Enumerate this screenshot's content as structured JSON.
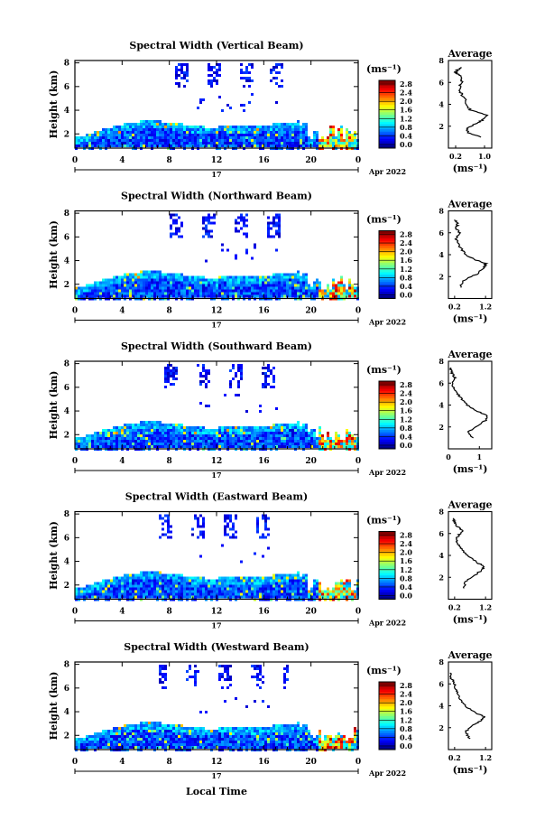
{
  "figure": {
    "xlabel": "Local Time",
    "day_label": "17",
    "date_label": "Apr 2022",
    "ylabel": "Height (km)",
    "colorbar_unit": "(ms⁻¹)",
    "avg_title": "Average",
    "avg_xlabel": "(ms⁻¹)"
  },
  "chart_data": [
    {
      "type": "heatmap",
      "title": "Spectral Width (Vertical Beam)",
      "xlabel": "Local Time",
      "ylabel": "Height (km)",
      "x_ticks": [
        "0",
        "4",
        "8",
        "12",
        "16",
        "20",
        "0"
      ],
      "y_ticks": [
        "2",
        "4",
        "6",
        "8"
      ],
      "xlim": [
        0,
        24
      ],
      "ylim": [
        0.8,
        8.2
      ],
      "colorbar": {
        "ticks": [
          "0.0",
          "0.4",
          "0.8",
          "1.2",
          "1.6",
          "2.0",
          "2.4",
          "2.8"
        ],
        "range": [
          0,
          2.8
        ]
      },
      "average": {
        "xticks": [
          "0.2",
          "1.0"
        ],
        "xlim": [
          0,
          1.2
        ],
        "ylim": [
          0,
          8
        ],
        "profile": [
          [
            0.9,
            1.0
          ],
          [
            0.55,
            1.4
          ],
          [
            0.5,
            1.8
          ],
          [
            0.75,
            2.2
          ],
          [
            0.95,
            2.6
          ],
          [
            1.05,
            3.0
          ],
          [
            0.6,
            3.5
          ],
          [
            0.5,
            4.0
          ],
          [
            0.45,
            4.5
          ],
          [
            0.35,
            5.0
          ],
          [
            0.3,
            5.5
          ],
          [
            0.35,
            6.0
          ],
          [
            0.4,
            6.4
          ],
          [
            0.25,
            6.8
          ],
          [
            0.2,
            7.0
          ],
          [
            0.35,
            7.4
          ]
        ]
      }
    },
    {
      "type": "heatmap",
      "title": "Spectral Width (Northward Beam)",
      "xlabel": "Local Time",
      "ylabel": "Height (km)",
      "x_ticks": [
        "0",
        "4",
        "8",
        "12",
        "16",
        "20",
        "0"
      ],
      "y_ticks": [
        "2",
        "4",
        "6",
        "8"
      ],
      "xlim": [
        0,
        24
      ],
      "ylim": [
        0.8,
        8.2
      ],
      "colorbar": {
        "ticks": [
          "0.0",
          "0.4",
          "0.8",
          "1.2",
          "1.6",
          "2.0",
          "2.4",
          "2.8"
        ],
        "range": [
          0,
          2.8
        ]
      },
      "average": {
        "xticks": [
          "0.2",
          "1.2"
        ],
        "xlim": [
          0,
          1.4
        ],
        "ylim": [
          0,
          8
        ],
        "profile": [
          [
            0.4,
            1.0
          ],
          [
            0.45,
            1.6
          ],
          [
            0.9,
            2.2
          ],
          [
            1.15,
            2.8
          ],
          [
            1.2,
            3.2
          ],
          [
            0.9,
            3.5
          ],
          [
            0.55,
            4.0
          ],
          [
            0.4,
            4.6
          ],
          [
            0.3,
            5.0
          ],
          [
            0.25,
            5.5
          ],
          [
            0.35,
            6.0
          ],
          [
            0.25,
            6.4
          ],
          [
            0.3,
            6.8
          ],
          [
            0.2,
            7.2
          ]
        ]
      }
    },
    {
      "type": "heatmap",
      "title": "Spectral Width (Southward Beam)",
      "xlabel": "Local Time",
      "ylabel": "Height (km)",
      "x_ticks": [
        "0",
        "4",
        "8",
        "12",
        "16",
        "20",
        "0"
      ],
      "y_ticks": [
        "2",
        "4",
        "6",
        "8"
      ],
      "xlim": [
        0,
        24
      ],
      "ylim": [
        0.8,
        8.2
      ],
      "colorbar": {
        "ticks": [
          "0.0",
          "0.4",
          "0.8",
          "1.2",
          "1.6",
          "2.0",
          "2.4",
          "2.8"
        ],
        "range": [
          0,
          2.8
        ]
      },
      "average": {
        "xticks": [
          "0",
          "1"
        ],
        "xlim": [
          0,
          1.4
        ],
        "ylim": [
          0,
          8
        ],
        "profile": [
          [
            0.8,
            1.0
          ],
          [
            0.6,
            1.5
          ],
          [
            0.9,
            2.0
          ],
          [
            1.2,
            2.6
          ],
          [
            1.25,
            3.0
          ],
          [
            0.9,
            3.5
          ],
          [
            0.6,
            4.0
          ],
          [
            0.45,
            4.5
          ],
          [
            0.3,
            5.0
          ],
          [
            0.2,
            5.5
          ],
          [
            0.1,
            6.0
          ],
          [
            0.2,
            6.5
          ],
          [
            0.1,
            7.0
          ],
          [
            0.05,
            7.4
          ]
        ]
      }
    },
    {
      "type": "heatmap",
      "title": "Spectral Width (Eastward Beam)",
      "xlabel": "Local Time",
      "ylabel": "Height (km)",
      "x_ticks": [
        "0",
        "4",
        "8",
        "12",
        "16",
        "20",
        "0"
      ],
      "y_ticks": [
        "2",
        "4",
        "6",
        "8"
      ],
      "xlim": [
        0,
        24
      ],
      "ylim": [
        0.8,
        8.2
      ],
      "colorbar": {
        "ticks": [
          "0.0",
          "0.4",
          "0.8",
          "1.2",
          "1.6",
          "2.0",
          "2.4",
          "2.8"
        ],
        "range": [
          0,
          2.8
        ]
      },
      "average": {
        "xticks": [
          "0.2",
          "1.2"
        ],
        "xlim": [
          0,
          1.4
        ],
        "ylim": [
          0,
          8
        ],
        "profile": [
          [
            0.5,
            1.0
          ],
          [
            0.55,
            1.6
          ],
          [
            0.85,
            2.2
          ],
          [
            1.1,
            2.7
          ],
          [
            1.15,
            3.0
          ],
          [
            0.9,
            3.4
          ],
          [
            0.6,
            4.0
          ],
          [
            0.45,
            4.6
          ],
          [
            0.3,
            5.0
          ],
          [
            0.25,
            5.5
          ],
          [
            0.35,
            5.9
          ],
          [
            0.45,
            6.3
          ],
          [
            0.3,
            6.6
          ],
          [
            0.2,
            7.0
          ],
          [
            0.15,
            7.4
          ]
        ]
      }
    },
    {
      "type": "heatmap",
      "title": "Spectral Width (Westward Beam)",
      "xlabel": "Local Time",
      "ylabel": "Height (km)",
      "x_ticks": [
        "0",
        "4",
        "8",
        "12",
        "16",
        "20",
        "0"
      ],
      "y_ticks": [
        "2",
        "4",
        "6",
        "8"
      ],
      "xlim": [
        0,
        24
      ],
      "ylim": [
        0.8,
        8.2
      ],
      "colorbar": {
        "ticks": [
          "0.0",
          "0.4",
          "0.8",
          "1.2",
          "1.6",
          "2.0",
          "2.4",
          "2.8"
        ],
        "range": [
          0,
          2.8
        ]
      },
      "average": {
        "xticks": [
          "0.2",
          "1.2"
        ],
        "xlim": [
          0,
          1.4
        ],
        "ylim": [
          0,
          8
        ],
        "profile": [
          [
            0.7,
            1.0
          ],
          [
            0.55,
            1.6
          ],
          [
            0.75,
            2.2
          ],
          [
            1.05,
            2.6
          ],
          [
            1.15,
            3.0
          ],
          [
            0.85,
            3.4
          ],
          [
            0.55,
            4.0
          ],
          [
            0.4,
            4.5
          ],
          [
            0.3,
            5.0
          ],
          [
            0.25,
            5.5
          ],
          [
            0.2,
            6.0
          ],
          [
            0.1,
            6.5
          ],
          [
            0.05,
            7.0
          ]
        ]
      }
    }
  ]
}
